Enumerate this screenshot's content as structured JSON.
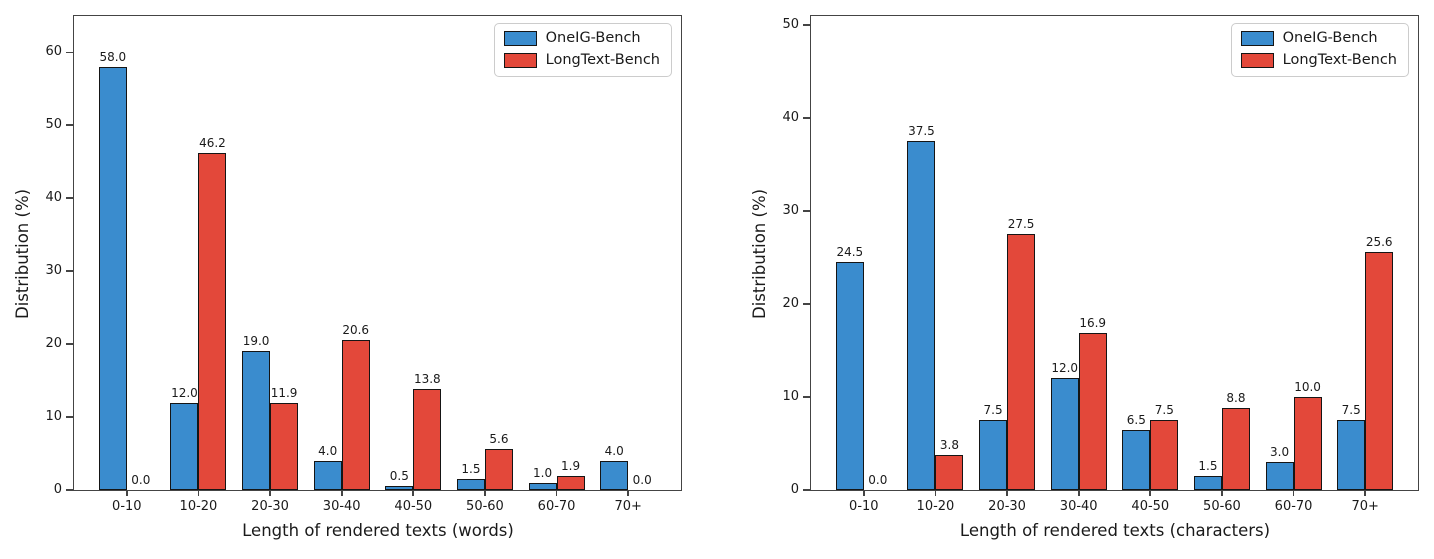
{
  "figure": {
    "background": "#ffffff",
    "axis_color": "#444444",
    "text_color": "#1a1a1a",
    "bar_edge_color": "#151515",
    "legend_border_color": "#cccccc",
    "series_colors": [
      "#3a8cce",
      "#e3483a"
    ]
  },
  "chart_data": [
    {
      "type": "bar",
      "title": "",
      "xlabel": "Length of rendered texts (words)",
      "ylabel": "Distribution (%)",
      "categories": [
        "0-10",
        "10-20",
        "20-30",
        "30-40",
        "40-50",
        "50-60",
        "60-70",
        "70+"
      ],
      "series": [
        {
          "name": "OneIG-Bench",
          "color": "#3a8cce",
          "values": [
            58.0,
            12.0,
            19.0,
            4.0,
            0.5,
            1.5,
            1.0,
            4.0
          ]
        },
        {
          "name": "LongText-Bench",
          "color": "#e3483a",
          "values": [
            0.0,
            46.2,
            11.9,
            20.6,
            13.8,
            5.6,
            1.9,
            0.0
          ]
        }
      ],
      "bar_value_labels": [
        "58.0",
        "12.0",
        "19.0",
        "4.0",
        "0.5",
        "1.5",
        "1.0",
        "4.0",
        "0.0",
        "46.2",
        "11.9",
        "20.6",
        "13.8",
        "5.6",
        "1.9",
        "0.0"
      ],
      "ylim": [
        0,
        65
      ],
      "yticks": [
        0,
        10,
        20,
        30,
        40,
        50,
        60
      ],
      "grid": false,
      "legend_position": "top-right",
      "legend_entries": [
        "OneIG-Bench",
        "LongText-Bench"
      ]
    },
    {
      "type": "bar",
      "title": "",
      "xlabel": "Length of rendered texts (characters)",
      "ylabel": "Distribution (%)",
      "categories": [
        "0-10",
        "10-20",
        "20-30",
        "30-40",
        "40-50",
        "50-60",
        "60-70",
        "70+"
      ],
      "series": [
        {
          "name": "OneIG-Bench",
          "color": "#3a8cce",
          "values": [
            24.5,
            37.5,
            7.5,
            12.0,
            6.5,
            1.5,
            3.0,
            7.5
          ]
        },
        {
          "name": "LongText-Bench",
          "color": "#e3483a",
          "values": [
            0.0,
            3.8,
            27.5,
            16.9,
            7.5,
            8.8,
            10.0,
            25.6
          ]
        }
      ],
      "bar_value_labels": [
        "24.5",
        "37.5",
        "7.5",
        "12.0",
        "6.5",
        "1.5",
        "3.0",
        "7.5",
        "0.0",
        "3.8",
        "27.5",
        "16.9",
        "7.5",
        "8.8",
        "10.0",
        "25.6"
      ],
      "ylim": [
        0,
        51
      ],
      "yticks": [
        0,
        10,
        20,
        30,
        40,
        50
      ],
      "grid": false,
      "legend_position": "top-right",
      "legend_entries": [
        "OneIG-Bench",
        "LongText-Bench"
      ]
    }
  ]
}
